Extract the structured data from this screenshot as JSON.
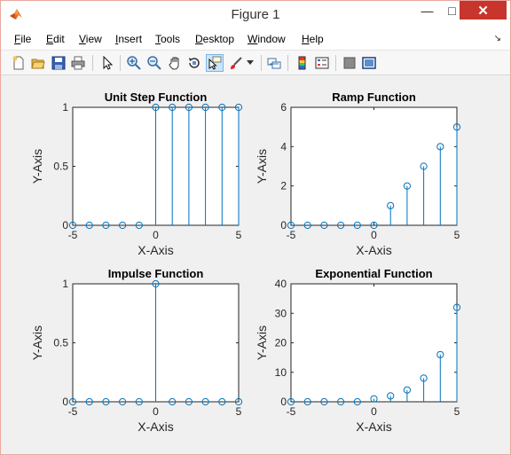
{
  "window": {
    "title": "Figure 1",
    "buttons": {
      "minimize": "—",
      "maximize": "□",
      "close": "✕"
    }
  },
  "menubar": {
    "items": [
      {
        "label": "File",
        "key": "F"
      },
      {
        "label": "Edit",
        "key": "E"
      },
      {
        "label": "View",
        "key": "V"
      },
      {
        "label": "Insert",
        "key": "I"
      },
      {
        "label": "Tools",
        "key": "T"
      },
      {
        "label": "Desktop",
        "key": "D"
      },
      {
        "label": "Window",
        "key": "W"
      },
      {
        "label": "Help",
        "key": "H"
      }
    ],
    "dock_glyph": "↘"
  },
  "toolbar": {
    "icons": [
      "new-figure-icon",
      "open-file-icon",
      "save-icon",
      "print-icon",
      "edit-plot-icon",
      "zoom-in-icon",
      "zoom-out-icon",
      "pan-icon",
      "rotate-3d-icon",
      "data-cursor-icon",
      "brush-icon",
      "brush-dropdown-icon",
      "link-plot-icon",
      "insert-colorbar-icon",
      "insert-legend-icon",
      "hide-plot-tools-icon",
      "show-plot-tools-icon"
    ],
    "pressed": "data-cursor-icon"
  },
  "colors": {
    "stem": "#0072bd",
    "close_button": "#c7352c",
    "figure_bg": "#f0f0f0"
  },
  "chart_data": [
    {
      "type": "stem",
      "title": "Unit Step Function",
      "xlabel": "X-Axis",
      "ylabel": "Y-Axis",
      "x": [
        -5,
        -4,
        -3,
        -2,
        -1,
        0,
        1,
        2,
        3,
        4,
        5
      ],
      "y": [
        0,
        0,
        0,
        0,
        0,
        1,
        1,
        1,
        1,
        1,
        1
      ],
      "xlim": [
        -5,
        5
      ],
      "ylim": [
        0,
        1
      ],
      "xticks": [
        -5,
        0,
        5
      ],
      "yticks": [
        0,
        0.5,
        1
      ],
      "xtick_labels": [
        "-5",
        "0",
        "5"
      ],
      "ytick_labels": [
        "0",
        "0.5",
        "1"
      ]
    },
    {
      "type": "stem",
      "title": "Ramp Function",
      "xlabel": "X-Axis",
      "ylabel": "Y-Axis",
      "x": [
        -5,
        -4,
        -3,
        -2,
        -1,
        0,
        1,
        2,
        3,
        4,
        5
      ],
      "y": [
        0,
        0,
        0,
        0,
        0,
        0,
        1,
        2,
        3,
        4,
        5
      ],
      "xlim": [
        -5,
        5
      ],
      "ylim": [
        0,
        6
      ],
      "xticks": [
        -5,
        0,
        5
      ],
      "yticks": [
        0,
        2,
        4,
        6
      ],
      "xtick_labels": [
        "-5",
        "0",
        "5"
      ],
      "ytick_labels": [
        "0",
        "2",
        "4",
        "6"
      ]
    },
    {
      "type": "stem",
      "title": "Impulse Function",
      "xlabel": "X-Axis",
      "ylabel": "Y-Axis",
      "x": [
        -5,
        -4,
        -3,
        -2,
        -1,
        0,
        1,
        2,
        3,
        4,
        5
      ],
      "y": [
        0,
        0,
        0,
        0,
        0,
        1,
        0,
        0,
        0,
        0,
        0
      ],
      "xlim": [
        -5,
        5
      ],
      "ylim": [
        0,
        1
      ],
      "xticks": [
        -5,
        0,
        5
      ],
      "yticks": [
        0,
        0.5,
        1
      ],
      "xtick_labels": [
        "-5",
        "0",
        "5"
      ],
      "ytick_labels": [
        "0",
        "0.5",
        "1"
      ]
    },
    {
      "type": "stem",
      "title": "Exponential Function",
      "xlabel": "X-Axis",
      "ylabel": "Y-Axis",
      "x": [
        -5,
        -4,
        -3,
        -2,
        -1,
        0,
        1,
        2,
        3,
        4,
        5
      ],
      "y": [
        0,
        0,
        0,
        0,
        0,
        1,
        2,
        4,
        8,
        16,
        32
      ],
      "xlim": [
        -5,
        5
      ],
      "ylim": [
        0,
        40
      ],
      "xticks": [
        -5,
        0,
        5
      ],
      "yticks": [
        0,
        10,
        20,
        30,
        40
      ],
      "xtick_labels": [
        "-5",
        "0",
        "5"
      ],
      "ytick_labels": [
        "0",
        "10",
        "20",
        "30",
        "40"
      ]
    }
  ]
}
